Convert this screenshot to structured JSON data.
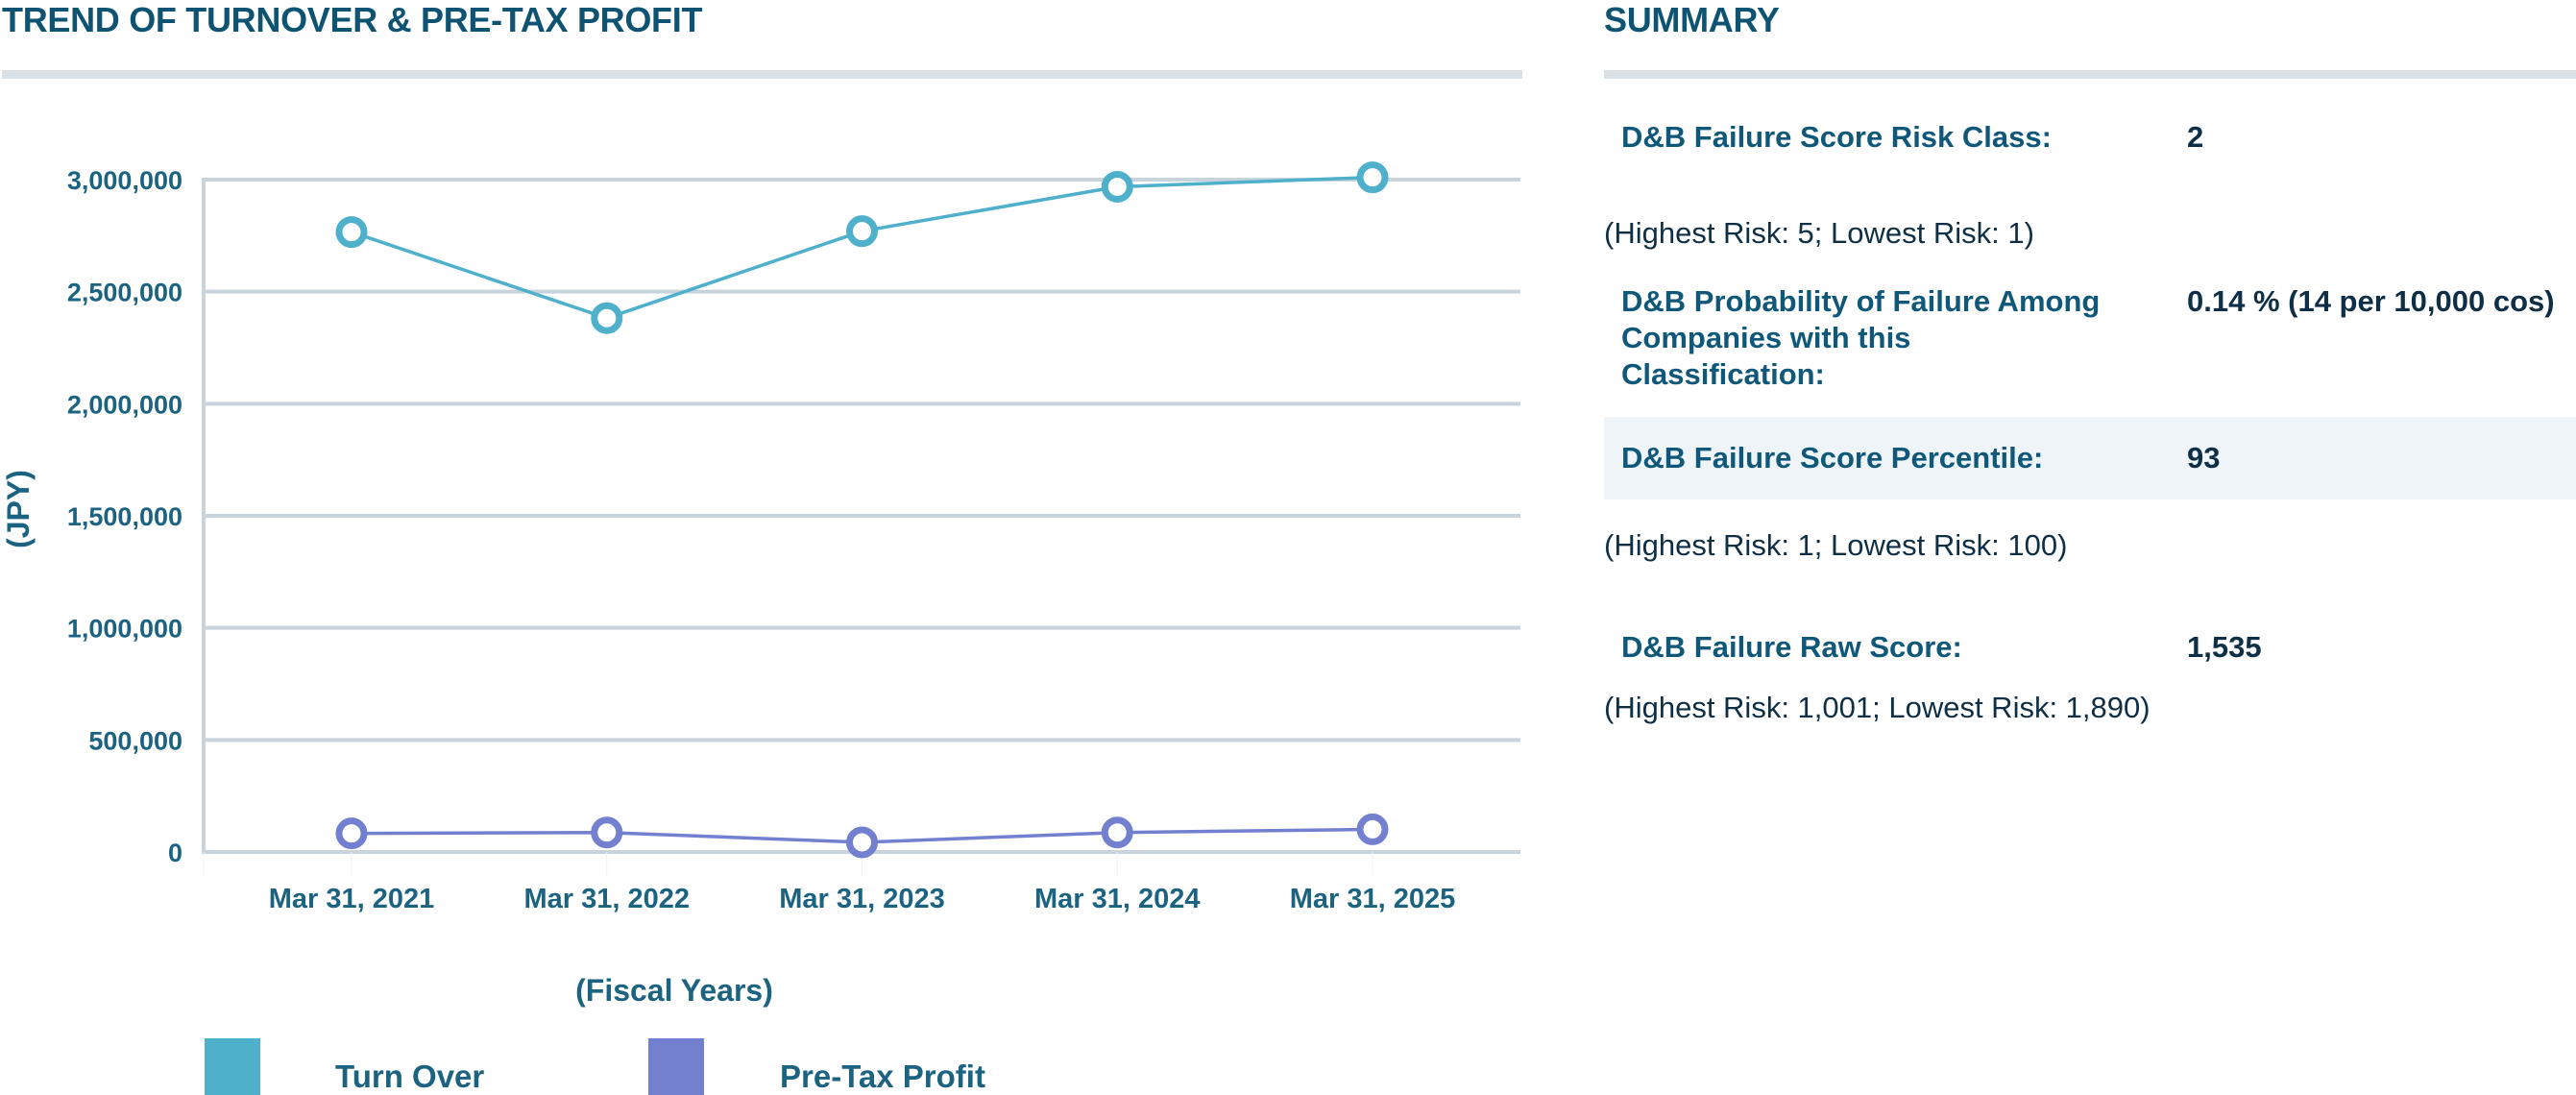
{
  "chart_section": {
    "title": "TREND OF TURNOVER & PRE-TAX PROFIT"
  },
  "chart_data": {
    "type": "line",
    "title": "TREND OF TURNOVER & PRE-TAX PROFIT",
    "xlabel": "(Fiscal Years)",
    "ylabel": "(JPY)",
    "categories": [
      "Mar 31, 2021",
      "Mar 31, 2022",
      "Mar 31, 2023",
      "Mar 31, 2024",
      "Mar 31, 2025"
    ],
    "series": [
      {
        "name": "Turn Over",
        "color": "#4fb0cc",
        "values": [
          2766000,
          2382000,
          2770000,
          2968000,
          3010000
        ]
      },
      {
        "name": "Pre-Tax Profit",
        "color": "#737fcf",
        "values": [
          83000,
          87000,
          43000,
          87000,
          101000
        ]
      }
    ],
    "ylim": [
      0,
      3000000
    ],
    "yticks": [
      0,
      500000,
      1000000,
      1500000,
      2000000,
      2500000,
      3000000
    ],
    "ytick_labels": [
      "0",
      "500,000",
      "1,000,000",
      "1,500,000",
      "2,000,000",
      "2,500,000",
      "3,000,000"
    ],
    "grid": true,
    "legend_position": "bottom-left",
    "marker": "hollow-circle"
  },
  "summary": {
    "title": "SUMMARY",
    "rows": [
      {
        "label": "D&B Failure Score Risk Class:",
        "value": "2",
        "note": "(Highest Risk: 5; Lowest Risk: 1)"
      },
      {
        "label_lines": [
          "D&B Probability of Failure Among",
          "Companies with this",
          "Classification:"
        ],
        "value": "0.14 % (14 per 10,000 cos)"
      },
      {
        "label": "D&B Failure Score Percentile:",
        "value": "93",
        "note": "(Highest Risk: 1; Lowest Risk: 100)",
        "highlighted": true
      },
      {
        "label": "D&B Failure Raw Score:",
        "value": "1,535",
        "note": "(Highest Risk: 1,001; Lowest Risk: 1,890)"
      }
    ]
  },
  "colors": {
    "heading": "#0e5472",
    "axis_text": "#1b6380",
    "grid": "#c9d3dc",
    "rule": "#d9e0e6",
    "highlight_band": "#eef4f8"
  }
}
